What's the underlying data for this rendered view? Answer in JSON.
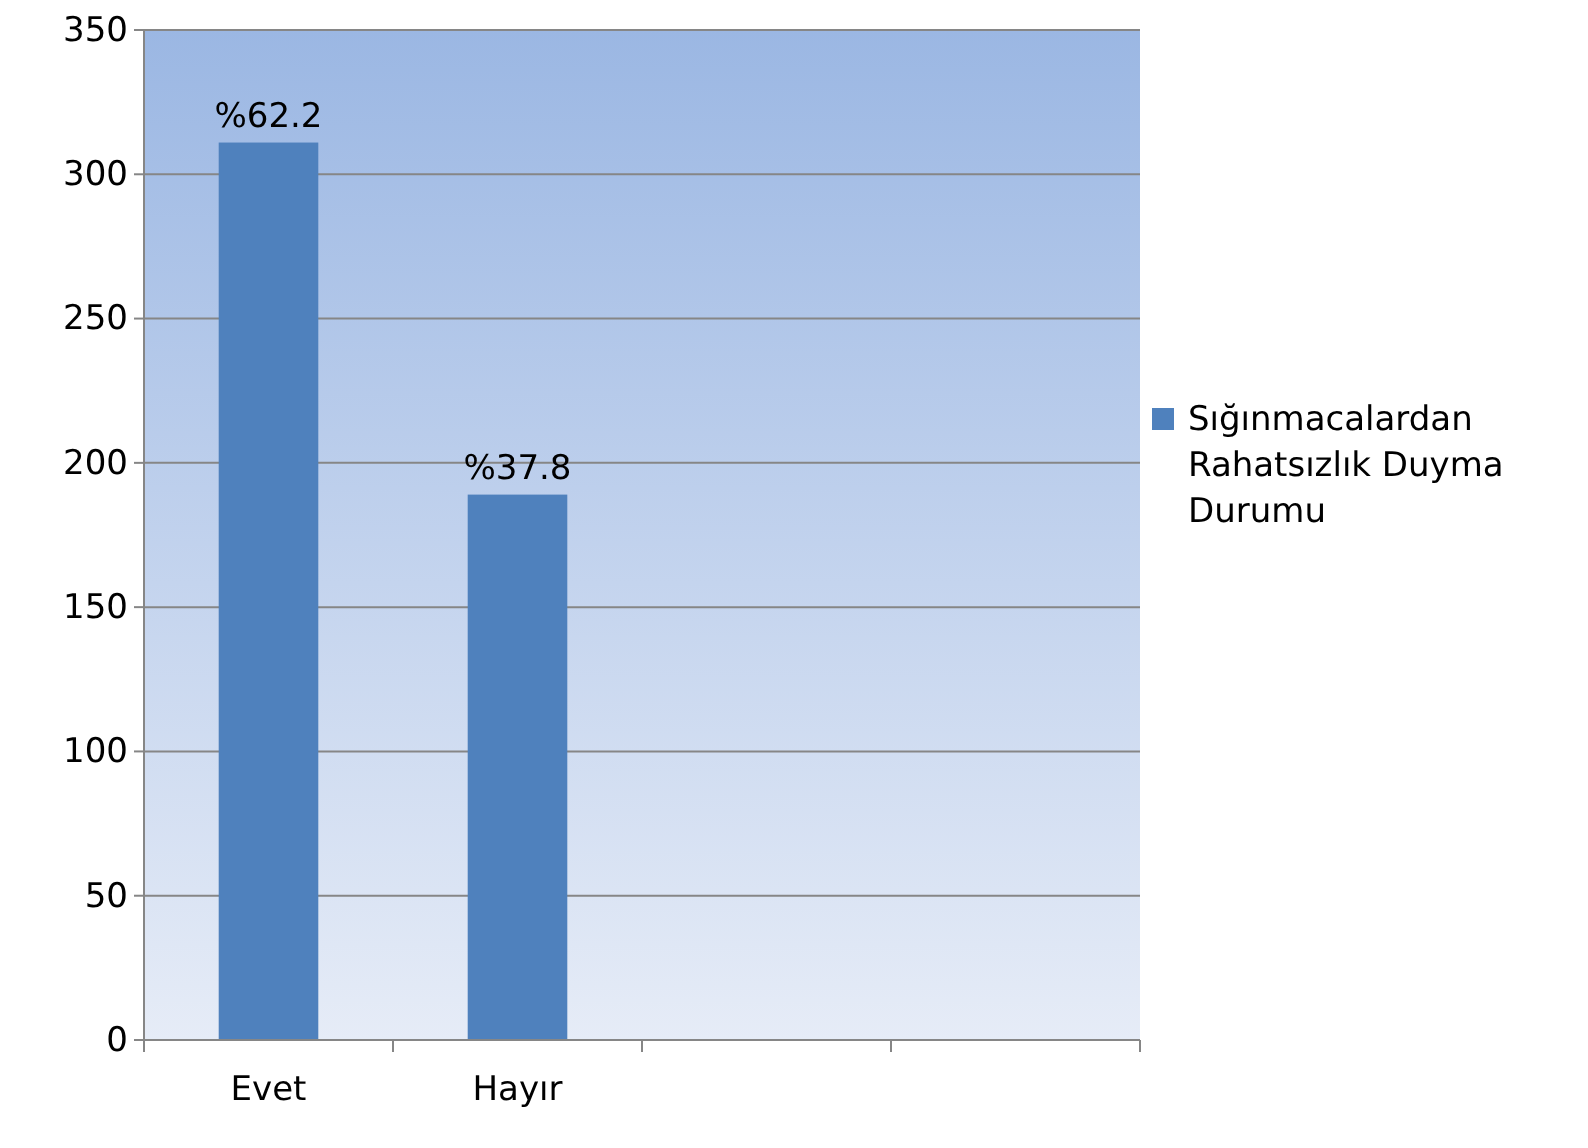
{
  "chart_data": {
    "type": "bar",
    "categories": [
      "Evet",
      "Hayır",
      null,
      null
    ],
    "series": [
      {
        "name": "Sığınmacalardan Rahatsızlık Duyma Durumu",
        "color": "#4f81bd",
        "values": [
          311,
          189,
          null,
          null
        ]
      }
    ],
    "annotations": [
      {
        "text": "%62.2",
        "x": "Evet",
        "y": 311
      },
      {
        "text": "%37.8",
        "x": "Hayır",
        "y": 189
      }
    ],
    "ylim": [
      0,
      350
    ],
    "yticks": [
      0,
      50,
      100,
      150,
      200,
      250,
      300,
      350
    ],
    "grid": "y",
    "legend": "right"
  }
}
